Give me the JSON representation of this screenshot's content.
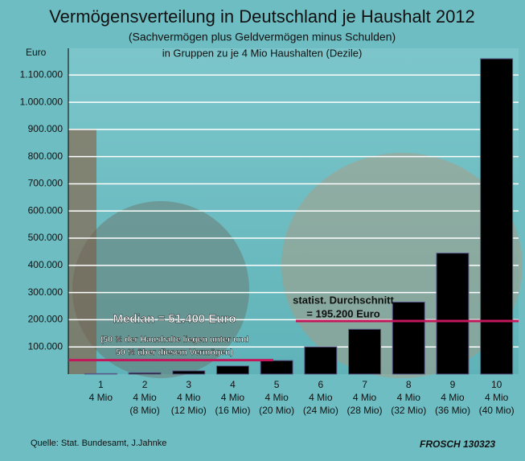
{
  "chart_data": {
    "type": "bar",
    "title": "Vermögensverteilung in Deutschland je Haushalt 2012",
    "subtitle": [
      "(Sachvermögen plus Geldvermögen minus Schulden)",
      "in Gruppen zu je 4 Mio Haushalten (Dezile)"
    ],
    "y_label": "Euro",
    "categories": [
      "1",
      "2",
      "3",
      "4",
      "5",
      "6",
      "7",
      "8",
      "9",
      "10"
    ],
    "households": [
      "4 Mio",
      "4 Mio",
      "4 Mio",
      "4 Mio",
      "4 Mio",
      "4 Mio",
      "4 Mio",
      "4 Mio",
      "4 Mio",
      "4 Mio"
    ],
    "cumulative": [
      null,
      "(8 Mio)",
      "(12 Mio)",
      "(16 Mio)",
      "(20 Mio)",
      "(24 Mio)",
      "(28 Mio)",
      "(32 Mio)",
      "(36 Mio)",
      "(40 Mio)"
    ],
    "values": [
      2000,
      5000,
      12000,
      30000,
      50000,
      100000,
      165000,
      265000,
      445000,
      1160000
    ],
    "color": "#000000",
    "ylim": [
      0,
      1200000
    ],
    "yticks": [
      {
        "value": 100000,
        "label": "100.000"
      },
      {
        "value": 200000,
        "label": "200.000"
      },
      {
        "value": 300000,
        "label": "300.000"
      },
      {
        "value": 400000,
        "label": "400.000"
      },
      {
        "value": 500000,
        "label": "500.000"
      },
      {
        "value": 600000,
        "label": "600.000"
      },
      {
        "value": 700000,
        "label": "700.000"
      },
      {
        "value": 800000,
        "label": "800.000"
      },
      {
        "value": 900000,
        "label": "900.000"
      },
      {
        "value": 1000000,
        "label": "1.000.000"
      },
      {
        "value": 1100000,
        "label": "1.100.000"
      }
    ],
    "grid": true,
    "median": {
      "value": 51400,
      "color": "#c2185b",
      "text": [
        "Median = 51.400 Euro",
        "(50 % der Haushalte liegen unter und",
        "50 % über diesem Vermögen)"
      ]
    },
    "mean": {
      "value": 195200,
      "color": "#c2185b",
      "text": [
        "statist. Durchschnitt",
        "= 195.200 Euro"
      ]
    },
    "source": "Quelle: Stat. Bundesamt, J.Jahnke",
    "signature": "FROSCH 130323"
  }
}
